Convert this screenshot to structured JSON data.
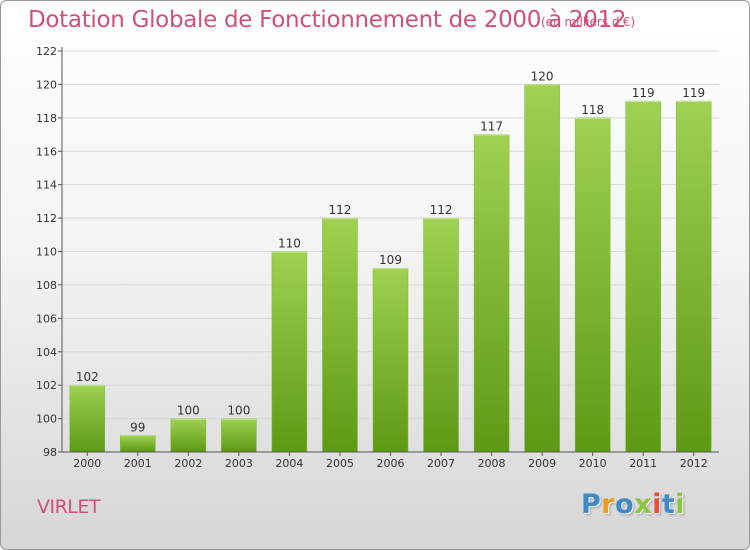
{
  "header": {
    "title": "Dotation Globale de Fonctionnement de 2000 à 2012",
    "unit": "(en milliers d'€)"
  },
  "footer": {
    "commune": "VIRLET",
    "logo": "Proxiti"
  },
  "colors": {
    "title": "#d0507a",
    "bar_top": "#9fd152",
    "bar_bottom": "#5e9914",
    "axis": "#555555",
    "gridline": "#d8d8d8"
  },
  "chart_data": {
    "type": "bar",
    "title": "Dotation Globale de Fonctionnement de 2000 à 2012",
    "subtitle": "(en milliers d'€)",
    "xlabel": "",
    "ylabel": "",
    "categories": [
      "2000",
      "2001",
      "2002",
      "2003",
      "2004",
      "2005",
      "2006",
      "2007",
      "2008",
      "2009",
      "2010",
      "2011",
      "2012"
    ],
    "values": [
      102,
      99,
      100,
      100,
      110,
      112,
      109,
      112,
      117,
      120,
      118,
      119,
      119
    ],
    "data_labels": [
      "102",
      "99",
      "100",
      "100",
      "110",
      "112",
      "109",
      "112",
      "117",
      "120",
      "118",
      "119",
      "119"
    ],
    "ylim": [
      98,
      122
    ],
    "yticks": [
      98,
      100,
      102,
      104,
      106,
      108,
      110,
      112,
      114,
      116,
      118,
      120,
      122
    ],
    "grid": true,
    "legend": "none"
  }
}
